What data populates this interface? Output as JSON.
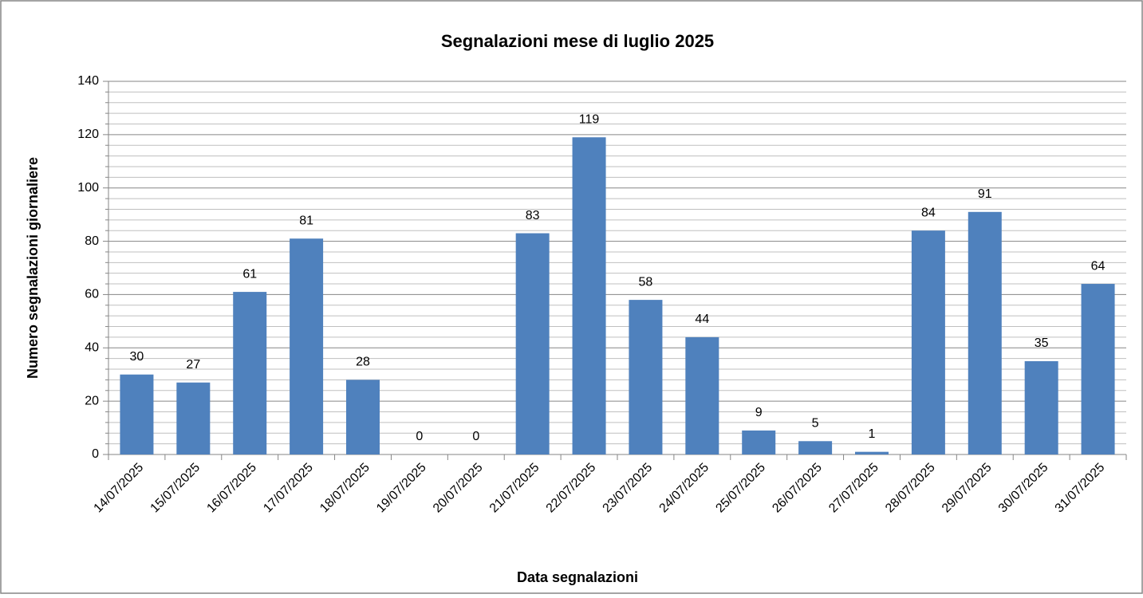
{
  "chart_data": {
    "type": "bar",
    "title": "Segnalazioni mese di luglio 2025",
    "x_label": "Data segnalazioni",
    "y_label": "Numero segnalazioni giornaliere",
    "categories": [
      "14/07/2025",
      "15/07/2025",
      "16/07/2025",
      "17/07/2025",
      "18/07/2025",
      "19/07/2025",
      "20/07/2025",
      "21/07/2025",
      "22/07/2025",
      "23/07/2025",
      "24/07/2025",
      "25/07/2025",
      "26/07/2025",
      "27/07/2025",
      "28/07/2025",
      "29/07/2025",
      "30/07/2025",
      "31/07/2025"
    ],
    "values": [
      30,
      27,
      61,
      81,
      28,
      0,
      0,
      83,
      119,
      58,
      44,
      9,
      5,
      1,
      84,
      91,
      35,
      64
    ],
    "color": "#4f81bd",
    "ylim": [
      0,
      140
    ],
    "yticks": [
      0,
      20,
      40,
      60,
      80,
      100,
      120,
      140
    ],
    "yminorticks": [
      4,
      8,
      12,
      16,
      24,
      28,
      32,
      36,
      44,
      48,
      52,
      56,
      64,
      68,
      72,
      76,
      84,
      88,
      92,
      96,
      104,
      108,
      112,
      116,
      124,
      128,
      132,
      136
    ],
    "grid": true
  }
}
